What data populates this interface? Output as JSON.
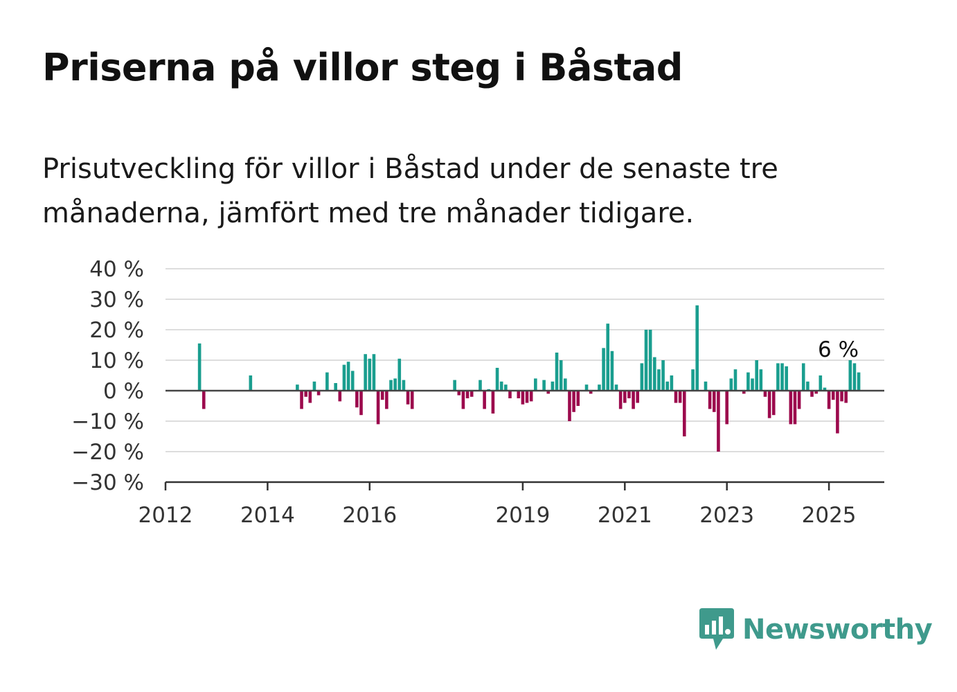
{
  "title": "Priserna på villor steg i Båstad",
  "subtitle": "Prisutveckling för villor i Båstad under de senaste tre månaderna, jämfört med tre månader tidigare.",
  "brand": {
    "name": "Newsworthy",
    "icon": "newsworthy-chart-bubble-icon",
    "color": "#3f9a8c"
  },
  "chart_data": {
    "type": "bar",
    "x_unit": "month",
    "y_unit": "%",
    "ylim": [
      -30,
      40
    ],
    "y_ticks": [
      40,
      30,
      20,
      10,
      0,
      -10,
      -20,
      -30
    ],
    "y_tick_labels": [
      "40 %",
      "30 %",
      "20 %",
      "10 %",
      "0 %",
      "−10 %",
      "−20 %",
      "−30 %"
    ],
    "x_ticks": [
      "2012",
      "2014",
      "2016",
      "2019",
      "2021",
      "2023",
      "2025"
    ],
    "x_range": [
      "2012-01",
      "2026-01"
    ],
    "grid": "horizontal",
    "colors": {
      "positive": "#1a9e8f",
      "negative": "#9c0a4d"
    },
    "annotation": {
      "date": "2025-04",
      "text": "6 %"
    },
    "values": [
      [
        "2012-09",
        15.5
      ],
      [
        "2012-10",
        -6.0
      ],
      [
        "2013-09",
        5.0
      ],
      [
        "2014-08",
        2.0
      ],
      [
        "2014-09",
        -6.0
      ],
      [
        "2014-10",
        -2.0
      ],
      [
        "2014-11",
        -4.0
      ],
      [
        "2014-12",
        3.0
      ],
      [
        "2015-01",
        -1.5
      ],
      [
        "2015-03",
        6.0
      ],
      [
        "2015-05",
        2.5
      ],
      [
        "2015-06",
        -3.5
      ],
      [
        "2015-07",
        8.5
      ],
      [
        "2015-08",
        9.5
      ],
      [
        "2015-09",
        6.5
      ],
      [
        "2015-10",
        -5.5
      ],
      [
        "2015-11",
        -8.0
      ],
      [
        "2015-12",
        12.0
      ],
      [
        "2016-01",
        10.5
      ],
      [
        "2016-02",
        12.0
      ],
      [
        "2016-03",
        -11.0
      ],
      [
        "2016-04",
        -3.0
      ],
      [
        "2016-05",
        -6.0
      ],
      [
        "2016-06",
        3.5
      ],
      [
        "2016-07",
        4.0
      ],
      [
        "2016-08",
        10.5
      ],
      [
        "2016-09",
        3.5
      ],
      [
        "2016-10",
        -4.5
      ],
      [
        "2016-11",
        -6.0
      ],
      [
        "2017-09",
        3.5
      ],
      [
        "2017-10",
        -1.5
      ],
      [
        "2017-11",
        -6.0
      ],
      [
        "2017-12",
        -2.5
      ],
      [
        "2018-01",
        -2.0
      ],
      [
        "2018-03",
        3.5
      ],
      [
        "2018-04",
        -6.0
      ],
      [
        "2018-05",
        0.5
      ],
      [
        "2018-06",
        -7.5
      ],
      [
        "2018-07",
        7.5
      ],
      [
        "2018-08",
        3.0
      ],
      [
        "2018-09",
        2.0
      ],
      [
        "2018-10",
        -2.5
      ],
      [
        "2018-12",
        -2.5
      ],
      [
        "2019-01",
        -4.5
      ],
      [
        "2019-02",
        -4.0
      ],
      [
        "2019-03",
        -3.5
      ],
      [
        "2019-04",
        4.0
      ],
      [
        "2019-06",
        3.5
      ],
      [
        "2019-07",
        -1.0
      ],
      [
        "2019-08",
        3.0
      ],
      [
        "2019-09",
        12.5
      ],
      [
        "2019-10",
        10.0
      ],
      [
        "2019-11",
        4.0
      ],
      [
        "2019-12",
        -10.0
      ],
      [
        "2020-01",
        -7.0
      ],
      [
        "2020-02",
        -5.0
      ],
      [
        "2020-04",
        2.0
      ],
      [
        "2020-05",
        -1.0
      ],
      [
        "2020-07",
        2.0
      ],
      [
        "2020-08",
        14.0
      ],
      [
        "2020-09",
        22.0
      ],
      [
        "2020-10",
        13.0
      ],
      [
        "2020-11",
        2.0
      ],
      [
        "2020-12",
        -6.0
      ],
      [
        "2021-01",
        -4.0
      ],
      [
        "2021-02",
        -2.5
      ],
      [
        "2021-03",
        -6.0
      ],
      [
        "2021-04",
        -4.0
      ],
      [
        "2021-05",
        9.0
      ],
      [
        "2021-06",
        20.0
      ],
      [
        "2021-07",
        20.0
      ],
      [
        "2021-08",
        11.0
      ],
      [
        "2021-09",
        7.0
      ],
      [
        "2021-10",
        10.0
      ],
      [
        "2021-11",
        3.0
      ],
      [
        "2021-12",
        5.0
      ],
      [
        "2022-01",
        -4.0
      ],
      [
        "2022-02",
        -4.0
      ],
      [
        "2022-03",
        -15.0
      ],
      [
        "2022-05",
        7.0
      ],
      [
        "2022-06",
        28.0
      ],
      [
        "2022-08",
        3.0
      ],
      [
        "2022-09",
        -6.0
      ],
      [
        "2022-10",
        -7.0
      ],
      [
        "2022-11",
        -20.0
      ],
      [
        "2023-01",
        -11.0
      ],
      [
        "2023-02",
        4.0
      ],
      [
        "2023-03",
        7.0
      ],
      [
        "2023-05",
        -1.0
      ],
      [
        "2023-06",
        6.0
      ],
      [
        "2023-07",
        4.0
      ],
      [
        "2023-08",
        10.0
      ],
      [
        "2023-09",
        7.0
      ],
      [
        "2023-10",
        -2.0
      ],
      [
        "2023-11",
        -9.0
      ],
      [
        "2023-12",
        -8.0
      ],
      [
        "2024-01",
        9.0
      ],
      [
        "2024-02",
        9.0
      ],
      [
        "2024-03",
        8.0
      ],
      [
        "2024-04",
        -11.0
      ],
      [
        "2024-05",
        -11.0
      ],
      [
        "2024-06",
        -6.0
      ],
      [
        "2024-07",
        9.0
      ],
      [
        "2024-08",
        3.0
      ],
      [
        "2024-09",
        -2.0
      ],
      [
        "2024-10",
        -1.0
      ],
      [
        "2024-11",
        5.0
      ],
      [
        "2024-12",
        1.0
      ],
      [
        "2025-01",
        -6.0
      ],
      [
        "2025-02",
        -3.0
      ],
      [
        "2025-03",
        -14.0
      ],
      [
        "2025-04",
        -3.5
      ],
      [
        "2025-05",
        -4.0
      ],
      [
        "2025-06",
        10.0
      ],
      [
        "2025-07",
        9.0
      ],
      [
        "2025-08",
        6.0
      ]
    ]
  }
}
